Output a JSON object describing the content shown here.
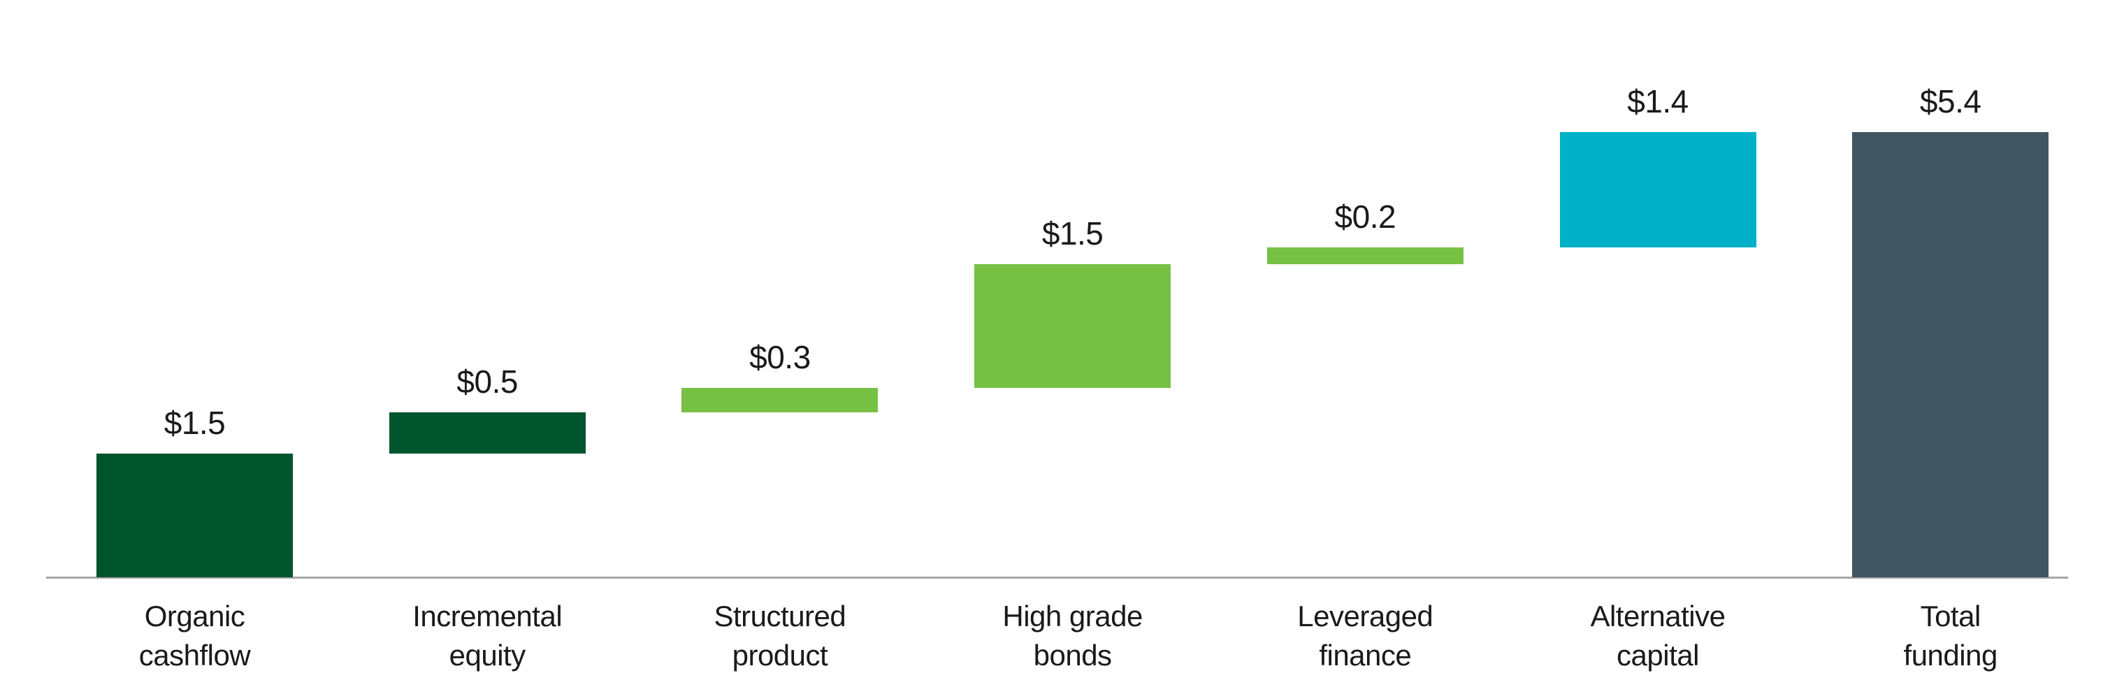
{
  "chart_data": {
    "type": "waterfall",
    "title": "",
    "xlabel": "",
    "ylabel": "",
    "categories": [
      "Organic cashflow",
      "Incremental equity",
      "Structured product",
      "High grade bonds",
      "Leveraged finance",
      "Alternative capital",
      "Total funding"
    ],
    "category_lines": [
      [
        "Organic",
        "cashflow"
      ],
      [
        "Incremental",
        "equity"
      ],
      [
        "Structured",
        "product"
      ],
      [
        "High grade",
        "bonds"
      ],
      [
        "Leveraged",
        "finance"
      ],
      [
        "Alternative",
        "capital"
      ],
      [
        "Total",
        "funding"
      ]
    ],
    "values": [
      1.5,
      0.5,
      0.3,
      1.5,
      0.2,
      1.4,
      5.4
    ],
    "value_labels": [
      "$1.5",
      "$0.5",
      "$0.3",
      "$1.5",
      "$0.2",
      "$1.4",
      "$5.4"
    ],
    "totals": [
      false,
      false,
      false,
      false,
      false,
      false,
      true
    ],
    "cumulative_starts": [
      0,
      1.5,
      2.0,
      2.3,
      3.8,
      4.0,
      0
    ],
    "bar_colors": [
      "#00542E",
      "#00542E",
      "#76C043",
      "#76C043",
      "#76C043",
      "#00B1C7",
      "#425563"
    ],
    "axis_color": "#A6A6A6",
    "text_color": "#1A1A1A",
    "ylim": [
      0,
      5.4
    ],
    "grid": false,
    "legend": false
  }
}
